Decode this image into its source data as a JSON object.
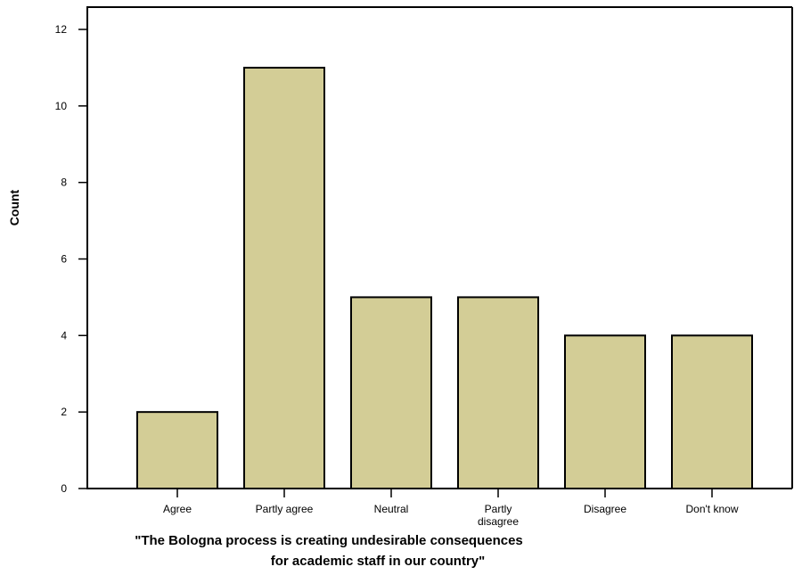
{
  "chart_data": {
    "type": "bar",
    "categories": [
      "Agree",
      "Partly agree",
      "Neutral",
      "Partly disagree",
      "Disagree",
      "Don't know"
    ],
    "category_label_lines": [
      [
        "Agree"
      ],
      [
        "Partly agree"
      ],
      [
        "Neutral"
      ],
      [
        "Partly",
        "disagree"
      ],
      [
        "Disagree"
      ],
      [
        "Don't know"
      ]
    ],
    "values": [
      2,
      11,
      5,
      5,
      4,
      4
    ],
    "xlabel_lines": [
      "\"The Bologna process is creating undesirable consequences",
      "for academic staff in our country\""
    ],
    "ylabel": "Count",
    "ylim": [
      0,
      12
    ],
    "yticks": [
      0,
      2,
      4,
      6,
      8,
      10,
      12
    ],
    "grid": false,
    "bar_color": "#d3cd96",
    "edge_color": "#000000"
  }
}
